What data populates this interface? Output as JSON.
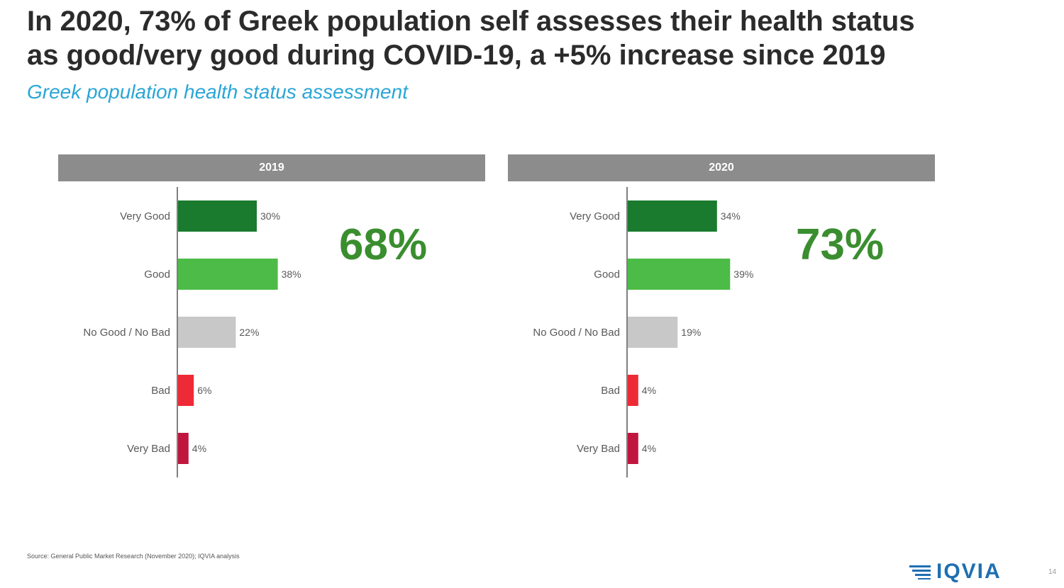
{
  "title_lines": [
    "In 2020, 73% of Greek population self assesses their health status",
    "as good/very good during COVID-19, a +5% increase since 2019"
  ],
  "subtitle": "Greek population health status assessment",
  "chart_data": [
    {
      "type": "bar",
      "orientation": "horizontal",
      "title": "2019",
      "categories": [
        "Very Good",
        "Good",
        "No Good / No Bad",
        "Bad",
        "Very Bad"
      ],
      "values": [
        30,
        38,
        22,
        6,
        4
      ],
      "value_labels": [
        "30%",
        "38%",
        "22%",
        "6%",
        "4%"
      ],
      "colors": [
        "#1a7a2e",
        "#4cbb47",
        "#c8c8c8",
        "#ee2a36",
        "#c0153e"
      ],
      "callout": "68%"
    },
    {
      "type": "bar",
      "orientation": "horizontal",
      "title": "2020",
      "categories": [
        "Very Good",
        "Good",
        "No Good / No Bad",
        "Bad",
        "Very Bad"
      ],
      "values": [
        34,
        39,
        19,
        4,
        4
      ],
      "value_labels": [
        "34%",
        "39%",
        "19%",
        "4%",
        "4%"
      ],
      "colors": [
        "#1a7a2e",
        "#4cbb47",
        "#c8c8c8",
        "#ee2a36",
        "#c0153e"
      ],
      "callout": "73%"
    }
  ],
  "source": "Source: General Public Market Research (November 2020); IQVIA analysis",
  "logo": {
    "text": "IQVIA",
    "color": "#1f6fb2"
  },
  "page_number": "14"
}
